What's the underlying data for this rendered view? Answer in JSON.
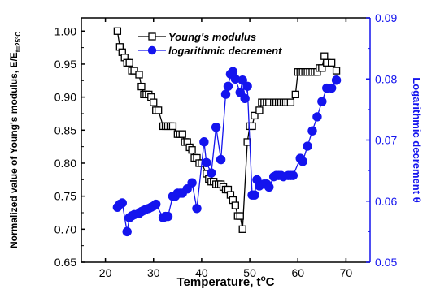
{
  "chart_data": {
    "type": "line",
    "xlabel_main": "Temperature, t",
    "xlabel_sup": "o",
    "xlabel_tail": "C",
    "ylabel_left_main": "Normalized value of Young's modulus, E/E",
    "ylabel_left_sub": "t=25°C",
    "ylabel_right_main": "Logarithmic decrement θ",
    "xlim": [
      15,
      75
    ],
    "ylim_left": [
      0.65,
      1.02
    ],
    "ylim_right": [
      0.05,
      0.09
    ],
    "x_ticks": [
      "20",
      "30",
      "40",
      "50",
      "60",
      "70"
    ],
    "y_left_ticks": [
      "0.65",
      "0.70",
      "0.75",
      "0.80",
      "0.85",
      "0.90",
      "0.95",
      "1.00"
    ],
    "y_right_ticks": [
      "0.05",
      "0.06",
      "0.07",
      "0.08",
      "0.09"
    ],
    "grid": false,
    "legend_position": "top-left",
    "series": [
      {
        "name": "Young's modulus",
        "axis": "left",
        "color": "#000000",
        "marker": "open-square",
        "x": [
          22.5,
          23,
          23.5,
          24,
          24.5,
          25,
          25.5,
          26,
          27,
          27.5,
          28,
          28.5,
          29,
          29.5,
          30,
          30.5,
          31,
          32,
          32.5,
          33,
          33.5,
          34,
          35,
          35.5,
          36,
          36.5,
          37,
          37.5,
          38,
          38.5,
          39,
          39.5,
          40,
          41,
          41.5,
          42,
          42.5,
          43,
          43.5,
          44,
          44.5,
          45,
          45.5,
          46,
          46.5,
          47,
          47.5,
          48,
          48.5,
          49.5,
          50,
          50.5,
          51,
          52,
          52.5,
          53,
          53.5,
          54,
          55,
          55.5,
          56,
          56.5,
          57,
          57.5,
          58,
          58.5,
          59.5,
          60,
          60.5,
          61,
          61.5,
          62,
          62.5,
          63,
          63.5,
          64,
          64.5,
          65,
          65.5,
          66,
          67,
          68
        ],
        "y": [
          1.0,
          0.976,
          0.968,
          0.96,
          0.952,
          0.952,
          0.94,
          0.94,
          0.934,
          0.916,
          0.904,
          0.904,
          0.904,
          0.9,
          0.892,
          0.88,
          0.88,
          0.856,
          0.856,
          0.856,
          0.856,
          0.856,
          0.844,
          0.844,
          0.844,
          0.832,
          0.832,
          0.824,
          0.82,
          0.808,
          0.808,
          0.8,
          0.8,
          0.784,
          0.776,
          0.772,
          0.772,
          0.768,
          0.768,
          0.768,
          0.764,
          0.76,
          0.76,
          0.752,
          0.744,
          0.736,
          0.72,
          0.72,
          0.7,
          0.832,
          0.856,
          0.856,
          0.872,
          0.88,
          0.892,
          0.892,
          0.892,
          0.892,
          0.892,
          0.892,
          0.892,
          0.892,
          0.892,
          0.892,
          0.892,
          0.892,
          0.904,
          0.938,
          0.938,
          0.938,
          0.938,
          0.938,
          0.938,
          0.938,
          0.938,
          0.938,
          0.944,
          0.944,
          0.962,
          0.952,
          0.952,
          0.94
        ]
      },
      {
        "name": "logarithmic decrement",
        "axis": "right",
        "color": "#1414ee",
        "marker": "filled-circle",
        "x": [
          22.5,
          23,
          23.5,
          24.5,
          25,
          25.5,
          26,
          27,
          27.5,
          28,
          28.5,
          29,
          29.5,
          30,
          30.5,
          32,
          32.5,
          33,
          34,
          34.5,
          35,
          35.5,
          36,
          37,
          38,
          39,
          40.5,
          41,
          42,
          43,
          44,
          45,
          45.5,
          46,
          46.5,
          47,
          48,
          48.5,
          49,
          49.5,
          50.5,
          51,
          51.5,
          52,
          53,
          53.5,
          54,
          55,
          55.5,
          56,
          56.5,
          57,
          58,
          58.5,
          59,
          60.5,
          61,
          62,
          63,
          64,
          65,
          66,
          67,
          68
        ],
        "y": [
          0.059,
          0.0595,
          0.0597,
          0.055,
          0.0573,
          0.0576,
          0.0578,
          0.058,
          0.0583,
          0.0585,
          0.0587,
          0.0588,
          0.059,
          0.0592,
          0.0595,
          0.0573,
          0.0575,
          0.0575,
          0.0608,
          0.0608,
          0.0613,
          0.0613,
          0.0613,
          0.062,
          0.063,
          0.0588,
          0.0697,
          0.0663,
          0.0646,
          0.0721,
          0.0668,
          0.0775,
          0.0788,
          0.0808,
          0.0812,
          0.08,
          0.0778,
          0.0798,
          0.0768,
          0.0788,
          0.061,
          0.061,
          0.0635,
          0.0625,
          0.0628,
          0.0628,
          0.0623,
          0.064,
          0.0642,
          0.0642,
          0.0642,
          0.064,
          0.0642,
          0.0642,
          0.0642,
          0.067,
          0.0665,
          0.069,
          0.0715,
          0.0738,
          0.0763,
          0.0785,
          0.0785,
          0.0798
        ]
      }
    ]
  }
}
